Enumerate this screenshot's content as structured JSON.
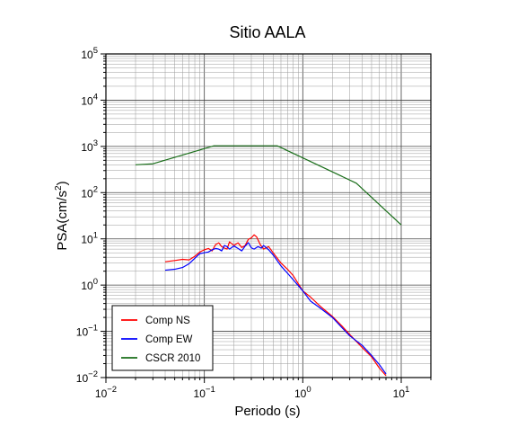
{
  "chart_data": {
    "type": "line",
    "title": "Sitio AALA",
    "xlabel": "Periodo (s)",
    "ylabel_base": "PSA(cm/s",
    "ylabel_sup": "2",
    "ylabel_end": ")",
    "xscale": "log",
    "yscale": "log",
    "xlim": [
      0.01,
      20
    ],
    "ylim": [
      0.01,
      100000
    ],
    "grid": true,
    "legend_position": "bottom-left",
    "x_ticks": [
      {
        "base": "10",
        "exp": "−2"
      },
      {
        "base": "10",
        "exp": "−1"
      },
      {
        "base": "10",
        "exp": "0"
      },
      {
        "base": "10",
        "exp": "1"
      }
    ],
    "y_ticks": [
      {
        "base": "10",
        "exp": "−2"
      },
      {
        "base": "10",
        "exp": "−1"
      },
      {
        "base": "10",
        "exp": "0"
      },
      {
        "base": "10",
        "exp": "1"
      },
      {
        "base": "10",
        "exp": "2"
      },
      {
        "base": "10",
        "exp": "3"
      },
      {
        "base": "10",
        "exp": "4"
      },
      {
        "base": "10",
        "exp": "5"
      }
    ],
    "series": [
      {
        "name": "Comp NS",
        "color": "#ff0000",
        "x": [
          0.04,
          0.05,
          0.06,
          0.07,
          0.08,
          0.09,
          0.1,
          0.11,
          0.12,
          0.13,
          0.14,
          0.15,
          0.16,
          0.17,
          0.18,
          0.2,
          0.22,
          0.24,
          0.26,
          0.28,
          0.3,
          0.32,
          0.34,
          0.37,
          0.4,
          0.45,
          0.5,
          0.6,
          0.7,
          0.8,
          1.0,
          1.2,
          1.5,
          2.0,
          2.5,
          3.0,
          4.0,
          5.0,
          6.0,
          7.0
        ],
        "y": [
          3.2,
          3.4,
          3.6,
          3.5,
          4.2,
          5.2,
          5.8,
          6.2,
          5.5,
          7.5,
          8.2,
          6.8,
          6.3,
          6.0,
          8.6,
          7.2,
          8.2,
          6.5,
          7.2,
          9.8,
          10.5,
          12.2,
          11.0,
          7.5,
          6.0,
          6.8,
          5.0,
          3.0,
          2.2,
          1.6,
          0.75,
          0.55,
          0.35,
          0.21,
          0.13,
          0.085,
          0.045,
          0.028,
          0.016,
          0.011
        ]
      },
      {
        "name": "Comp EW",
        "color": "#0000ff",
        "x": [
          0.04,
          0.05,
          0.06,
          0.07,
          0.08,
          0.09,
          0.1,
          0.11,
          0.12,
          0.13,
          0.14,
          0.15,
          0.16,
          0.17,
          0.18,
          0.2,
          0.22,
          0.24,
          0.26,
          0.28,
          0.3,
          0.32,
          0.35,
          0.38,
          0.4,
          0.45,
          0.5,
          0.6,
          0.7,
          0.8,
          1.0,
          1.2,
          1.5,
          2.0,
          2.5,
          3.0,
          4.0,
          5.0,
          6.0,
          7.0
        ],
        "y": [
          2.1,
          2.2,
          2.4,
          2.9,
          3.8,
          4.8,
          5.0,
          5.2,
          5.8,
          6.2,
          6.0,
          5.5,
          7.2,
          6.8,
          6.0,
          7.0,
          6.2,
          5.5,
          7.0,
          8.3,
          6.4,
          6.0,
          6.8,
          6.3,
          7.2,
          5.8,
          4.5,
          2.6,
          1.8,
          1.3,
          0.75,
          0.45,
          0.32,
          0.2,
          0.12,
          0.08,
          0.05,
          0.03,
          0.019,
          0.012
        ]
      },
      {
        "name": "CSCR 2010",
        "color": "#1a6e1a",
        "x": [
          0.02,
          0.03,
          0.125,
          0.55,
          3.5,
          10.0
        ],
        "y": [
          400,
          420,
          1030,
          1030,
          160,
          20
        ]
      }
    ]
  }
}
